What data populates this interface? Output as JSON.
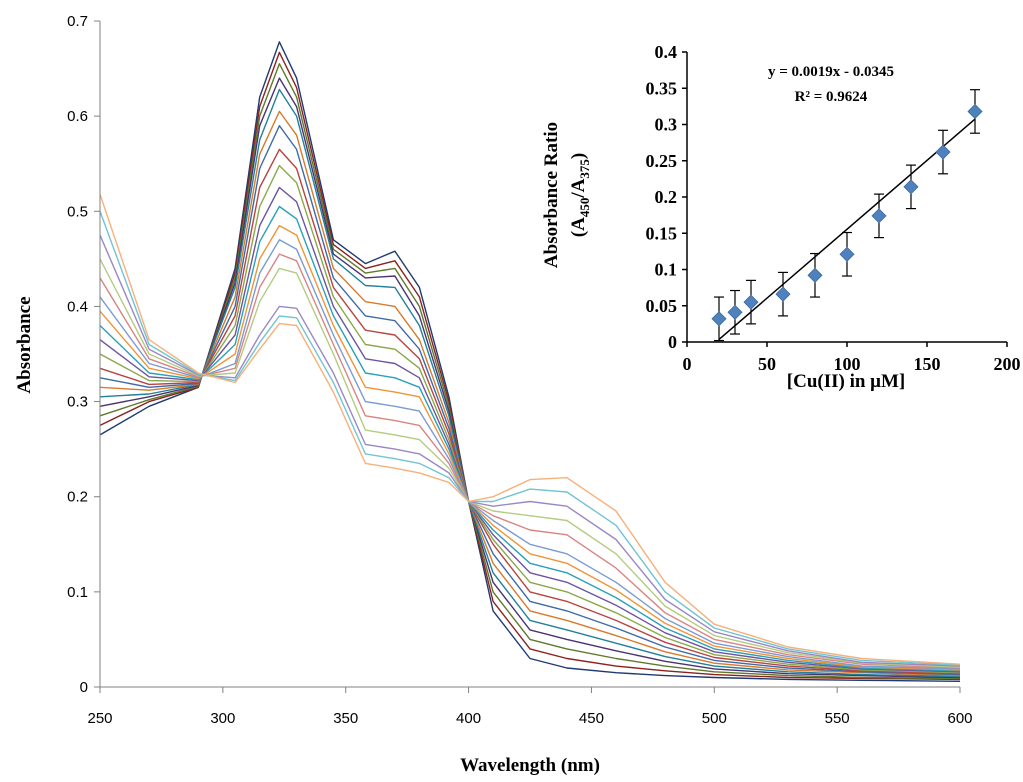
{
  "chart_data": [
    {
      "type": "line",
      "title": "",
      "xlabel": "Wavelength (nm)",
      "ylabel": "Absorbance",
      "xlim": [
        250,
        600
      ],
      "ylim": [
        0,
        0.7
      ],
      "xticks": [
        250,
        300,
        350,
        400,
        450,
        500,
        550,
        600
      ],
      "yticks": [
        0,
        0.1,
        0.2,
        0.3,
        0.4,
        0.5,
        0.6,
        0.7
      ],
      "ytick_labels": [
        "0",
        "0.1",
        "0.2",
        "0.3",
        "0.4",
        "0.5",
        "0.6",
        "0.7"
      ],
      "grid": false,
      "legend": "none",
      "series_colors": [
        "#1f3a73",
        "#8b2320",
        "#5d7a2a",
        "#4a3373",
        "#22809a",
        "#d77a2b",
        "#3d6aaa",
        "#b84440",
        "#8aa84a",
        "#6c55a0",
        "#2aa0b8",
        "#f0943a",
        "#7a9bd2",
        "#d88583",
        "#b3cc80",
        "#9a88c2",
        "#70c4d4",
        "#f7b07a"
      ],
      "series": [
        {
          "x": [
            250,
            270,
            290,
            305,
            315,
            323,
            330,
            345,
            358,
            370,
            380,
            392,
            400,
            410,
            425,
            440,
            460,
            480,
            500,
            530,
            560,
            600
          ],
          "y": [
            0.265,
            0.295,
            0.315,
            0.44,
            0.62,
            0.678,
            0.64,
            0.47,
            0.445,
            0.458,
            0.42,
            0.305,
            0.195,
            0.08,
            0.03,
            0.02,
            0.015,
            0.012,
            0.01,
            0.008,
            0.007,
            0.006
          ]
        },
        {
          "x": [
            250,
            270,
            290,
            305,
            315,
            323,
            330,
            345,
            358,
            370,
            380,
            392,
            400,
            410,
            425,
            440,
            460,
            480,
            500,
            530,
            560,
            600
          ],
          "y": [
            0.275,
            0.3,
            0.315,
            0.435,
            0.61,
            0.667,
            0.63,
            0.465,
            0.44,
            0.448,
            0.41,
            0.3,
            0.195,
            0.09,
            0.04,
            0.03,
            0.022,
            0.017,
            0.013,
            0.01,
            0.009,
            0.008
          ]
        },
        {
          "x": [
            250,
            270,
            290,
            305,
            315,
            323,
            330,
            345,
            358,
            370,
            380,
            392,
            400,
            410,
            425,
            440,
            460,
            480,
            500,
            530,
            560,
            600
          ],
          "y": [
            0.285,
            0.302,
            0.316,
            0.43,
            0.6,
            0.655,
            0.62,
            0.46,
            0.435,
            0.44,
            0.4,
            0.295,
            0.195,
            0.1,
            0.05,
            0.04,
            0.03,
            0.022,
            0.016,
            0.012,
            0.01,
            0.009
          ]
        },
        {
          "x": [
            250,
            270,
            290,
            305,
            315,
            323,
            330,
            345,
            358,
            370,
            380,
            392,
            400,
            410,
            425,
            440,
            460,
            480,
            500,
            530,
            560,
            600
          ],
          "y": [
            0.295,
            0.305,
            0.317,
            0.425,
            0.59,
            0.64,
            0.61,
            0.455,
            0.43,
            0.432,
            0.39,
            0.29,
            0.195,
            0.11,
            0.06,
            0.05,
            0.038,
            0.027,
            0.019,
            0.014,
            0.012,
            0.01
          ]
        },
        {
          "x": [
            250,
            270,
            290,
            305,
            315,
            323,
            330,
            345,
            358,
            370,
            380,
            392,
            400,
            410,
            425,
            440,
            460,
            480,
            500,
            530,
            560,
            600
          ],
          "y": [
            0.305,
            0.308,
            0.318,
            0.42,
            0.575,
            0.628,
            0.6,
            0.45,
            0.422,
            0.42,
            0.38,
            0.285,
            0.195,
            0.12,
            0.07,
            0.06,
            0.046,
            0.032,
            0.022,
            0.016,
            0.013,
            0.011
          ]
        },
        {
          "x": [
            250,
            270,
            290,
            305,
            315,
            323,
            330,
            345,
            358,
            370,
            380,
            392,
            400,
            410,
            425,
            440,
            460,
            480,
            500,
            530,
            560,
            600
          ],
          "y": [
            0.315,
            0.312,
            0.318,
            0.41,
            0.56,
            0.605,
            0.58,
            0.44,
            0.405,
            0.4,
            0.365,
            0.278,
            0.195,
            0.13,
            0.08,
            0.07,
            0.054,
            0.037,
            0.025,
            0.018,
            0.015,
            0.012
          ]
        },
        {
          "x": [
            250,
            270,
            290,
            305,
            315,
            323,
            330,
            345,
            358,
            370,
            380,
            392,
            400,
            410,
            425,
            440,
            460,
            480,
            500,
            530,
            560,
            600
          ],
          "y": [
            0.325,
            0.315,
            0.319,
            0.4,
            0.545,
            0.59,
            0.565,
            0.43,
            0.39,
            0.385,
            0.355,
            0.272,
            0.195,
            0.14,
            0.09,
            0.08,
            0.062,
            0.042,
            0.028,
            0.02,
            0.016,
            0.013
          ]
        },
        {
          "x": [
            250,
            270,
            290,
            305,
            315,
            323,
            330,
            345,
            358,
            370,
            380,
            392,
            400,
            410,
            425,
            440,
            460,
            480,
            500,
            530,
            560,
            600
          ],
          "y": [
            0.335,
            0.318,
            0.32,
            0.39,
            0.525,
            0.565,
            0.545,
            0.42,
            0.375,
            0.37,
            0.345,
            0.266,
            0.195,
            0.15,
            0.1,
            0.09,
            0.07,
            0.047,
            0.031,
            0.022,
            0.017,
            0.014
          ]
        },
        {
          "x": [
            250,
            270,
            290,
            305,
            315,
            323,
            330,
            345,
            358,
            370,
            380,
            392,
            400,
            410,
            425,
            440,
            460,
            480,
            500,
            530,
            560,
            600
          ],
          "y": [
            0.35,
            0.322,
            0.321,
            0.38,
            0.505,
            0.548,
            0.53,
            0.41,
            0.36,
            0.355,
            0.335,
            0.26,
            0.195,
            0.155,
            0.11,
            0.1,
            0.078,
            0.052,
            0.034,
            0.024,
            0.018,
            0.015
          ]
        },
        {
          "x": [
            250,
            270,
            290,
            305,
            315,
            323,
            330,
            345,
            358,
            370,
            380,
            392,
            400,
            410,
            425,
            440,
            460,
            480,
            500,
            530,
            560,
            600
          ],
          "y": [
            0.365,
            0.326,
            0.322,
            0.37,
            0.485,
            0.525,
            0.51,
            0.4,
            0.345,
            0.34,
            0.325,
            0.255,
            0.195,
            0.16,
            0.12,
            0.11,
            0.086,
            0.057,
            0.037,
            0.026,
            0.019,
            0.016
          ]
        },
        {
          "x": [
            250,
            270,
            290,
            305,
            315,
            323,
            330,
            345,
            358,
            370,
            380,
            392,
            400,
            410,
            425,
            440,
            460,
            480,
            500,
            530,
            560,
            600
          ],
          "y": [
            0.38,
            0.33,
            0.323,
            0.36,
            0.468,
            0.505,
            0.492,
            0.39,
            0.33,
            0.325,
            0.315,
            0.25,
            0.195,
            0.165,
            0.13,
            0.12,
            0.094,
            0.062,
            0.04,
            0.028,
            0.02,
            0.017
          ]
        },
        {
          "x": [
            250,
            270,
            290,
            305,
            315,
            323,
            330,
            345,
            358,
            370,
            380,
            392,
            400,
            410,
            425,
            440,
            460,
            480,
            500,
            530,
            560,
            600
          ],
          "y": [
            0.395,
            0.335,
            0.324,
            0.35,
            0.45,
            0.485,
            0.475,
            0.38,
            0.315,
            0.31,
            0.305,
            0.245,
            0.195,
            0.17,
            0.14,
            0.13,
            0.102,
            0.067,
            0.043,
            0.03,
            0.021,
            0.018
          ]
        },
        {
          "x": [
            250,
            270,
            290,
            305,
            315,
            323,
            330,
            345,
            358,
            370,
            380,
            392,
            400,
            410,
            425,
            440,
            460,
            480,
            500,
            530,
            560,
            600
          ],
          "y": [
            0.41,
            0.34,
            0.325,
            0.34,
            0.435,
            0.47,
            0.46,
            0.37,
            0.3,
            0.295,
            0.29,
            0.24,
            0.195,
            0.175,
            0.15,
            0.14,
            0.11,
            0.072,
            0.046,
            0.032,
            0.022,
            0.019
          ]
        },
        {
          "x": [
            250,
            270,
            290,
            305,
            315,
            323,
            330,
            345,
            358,
            370,
            380,
            392,
            400,
            410,
            425,
            440,
            460,
            480,
            500,
            530,
            560,
            600
          ],
          "y": [
            0.43,
            0.345,
            0.326,
            0.335,
            0.42,
            0.455,
            0.448,
            0.36,
            0.285,
            0.28,
            0.275,
            0.235,
            0.195,
            0.18,
            0.165,
            0.16,
            0.125,
            0.078,
            0.05,
            0.034,
            0.024,
            0.02
          ]
        },
        {
          "x": [
            250,
            270,
            290,
            305,
            315,
            323,
            330,
            345,
            358,
            370,
            380,
            392,
            400,
            410,
            425,
            440,
            460,
            480,
            500,
            530,
            560,
            600
          ],
          "y": [
            0.45,
            0.35,
            0.327,
            0.33,
            0.405,
            0.44,
            0.435,
            0.35,
            0.27,
            0.265,
            0.26,
            0.23,
            0.195,
            0.185,
            0.18,
            0.175,
            0.14,
            0.085,
            0.054,
            0.036,
            0.025,
            0.021
          ]
        },
        {
          "x": [
            250,
            270,
            290,
            305,
            315,
            323,
            330,
            345,
            358,
            370,
            380,
            392,
            400,
            410,
            425,
            440,
            460,
            480,
            500,
            530,
            560,
            600
          ],
          "y": [
            0.475,
            0.355,
            0.328,
            0.325,
            0.37,
            0.4,
            0.398,
            0.33,
            0.255,
            0.25,
            0.245,
            0.225,
            0.195,
            0.19,
            0.195,
            0.19,
            0.155,
            0.092,
            0.058,
            0.038,
            0.026,
            0.022
          ]
        },
        {
          "x": [
            250,
            270,
            290,
            305,
            315,
            323,
            330,
            345,
            358,
            370,
            380,
            392,
            400,
            410,
            425,
            440,
            460,
            480,
            500,
            530,
            560,
            600
          ],
          "y": [
            0.5,
            0.36,
            0.329,
            0.322,
            0.362,
            0.39,
            0.388,
            0.32,
            0.245,
            0.24,
            0.235,
            0.22,
            0.195,
            0.195,
            0.208,
            0.205,
            0.17,
            0.1,
            0.062,
            0.04,
            0.028,
            0.023
          ]
        },
        {
          "x": [
            250,
            270,
            290,
            305,
            315,
            323,
            330,
            345,
            358,
            370,
            380,
            392,
            400,
            410,
            425,
            440,
            460,
            480,
            500,
            530,
            560,
            600
          ],
          "y": [
            0.518,
            0.365,
            0.33,
            0.32,
            0.355,
            0.382,
            0.38,
            0.31,
            0.235,
            0.23,
            0.225,
            0.215,
            0.195,
            0.2,
            0.218,
            0.22,
            0.185,
            0.11,
            0.066,
            0.042,
            0.03,
            0.024
          ]
        }
      ]
    },
    {
      "type": "scatter",
      "title": "",
      "xlabel": "[Cu(II) in μM]",
      "ylabel": "Absorbance Ratio",
      "ylabel_line2": "(A450/A375)",
      "ylabel_line2_parts": {
        "open": "(A",
        "sub1": "450",
        "slash": "/A",
        "sub2": "375",
        "close": ")"
      },
      "xlim": [
        0,
        200
      ],
      "ylim": [
        0,
        0.4
      ],
      "xticks": [
        0,
        50,
        100,
        150,
        200
      ],
      "yticks": [
        0,
        0.05,
        0.1,
        0.15,
        0.2,
        0.25,
        0.3,
        0.35,
        0.4
      ],
      "ytick_labels": [
        "0",
        "0.05",
        "0.1",
        "0.15",
        "0.2",
        "0.25",
        "0.3",
        "0.35",
        "0.4"
      ],
      "marker": "diamond",
      "marker_color": "#4f81bd",
      "points": [
        {
          "x": 20,
          "y": 0.032,
          "err": 0.03
        },
        {
          "x": 30,
          "y": 0.041,
          "err": 0.03
        },
        {
          "x": 40,
          "y": 0.055,
          "err": 0.03
        },
        {
          "x": 60,
          "y": 0.066,
          "err": 0.03
        },
        {
          "x": 80,
          "y": 0.092,
          "err": 0.03
        },
        {
          "x": 100,
          "y": 0.121,
          "err": 0.03
        },
        {
          "x": 120,
          "y": 0.174,
          "err": 0.03
        },
        {
          "x": 140,
          "y": 0.214,
          "err": 0.03
        },
        {
          "x": 160,
          "y": 0.262,
          "err": 0.03
        },
        {
          "x": 180,
          "y": 0.318,
          "err": 0.03
        }
      ],
      "trendline": {
        "slope": 0.0019,
        "intercept": -0.0345,
        "x_range": [
          20,
          180
        ]
      },
      "equation": "y = 0.0019x - 0.0345",
      "r_squared": "R² = 0.9624"
    }
  ]
}
